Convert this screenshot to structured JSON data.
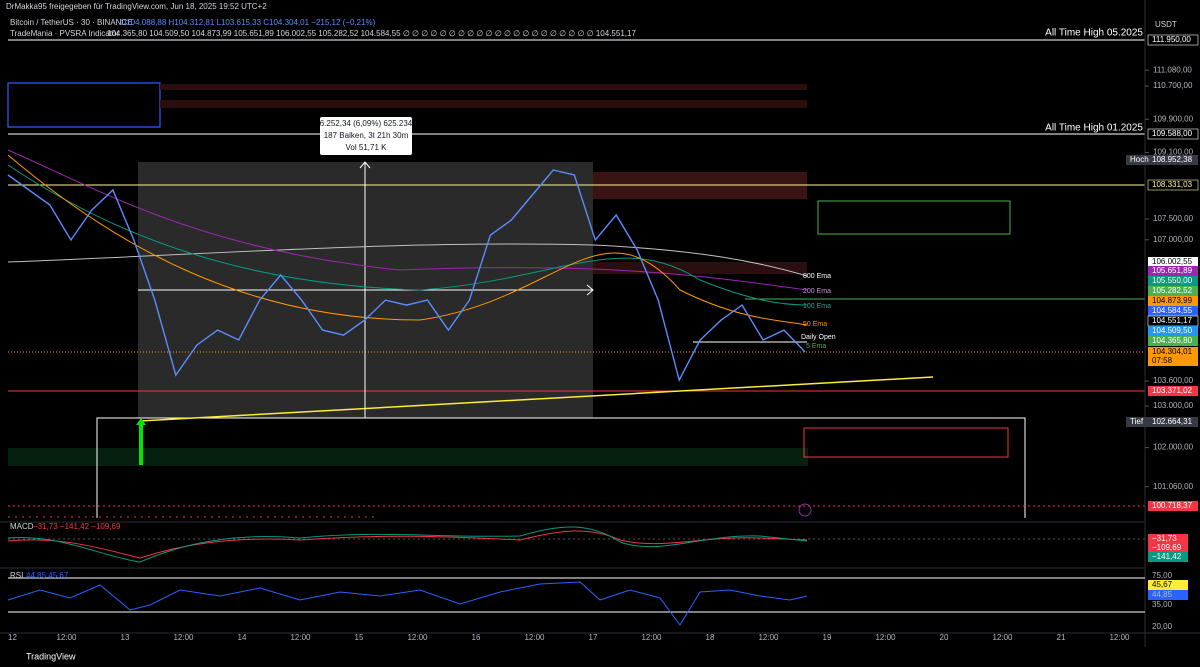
{
  "header": {
    "title_line": "DrMakka95 freigegeben für TradingView.com, Jun 18, 2025 19:52 UTC+2",
    "symbol": "Bitcoin / TetherUS · 30 · BINANCE",
    "ohlc": "O104.088,88 H104.312,81 L103.615,33 C104.304,01 −215,12 (−0,21%)",
    "indicator": "TradeMania · PVSRA Indicator",
    "indicator_values": "104.365,80 104.509,50 104.873,99 105.651,89 106.002,55 105.282,52 104.584,55 ∅ ∅ ∅ ∅ ∅ ∅ ∅ ∅ ∅ ∅ ∅ ∅ ∅ ∅ ∅ ∅ ∅ ∅ ∅ ∅ ∅ 104.551,17"
  },
  "currency": "USDT",
  "annotations": [
    "All Time High 05.2025",
    "All Time High 01.2025"
  ],
  "measure": [
    "6.252,34 (6,09%) 625.234",
    "187 Balken, 3t 21h 30m",
    "Vol 51,71 K"
  ],
  "ema_labels": [
    "800 Ema",
    "200 Ema",
    "100 Ema",
    "50 Ema",
    "Daily Open",
    "5 Ema"
  ],
  "price_tags": [
    "111.950,00",
    "109.588,00",
    "108.952,38",
    "108.331,03",
    "106.002,55",
    "105.651,89",
    "105.550,00",
    "105.282,52",
    "104.873,99",
    "104.584,55",
    "104.551,17",
    "104.509,50",
    "104.365,80",
    "104.304,01",
    "07:58",
    "103.371,02",
    "102.664,31",
    "100.718,37"
  ],
  "tag_notes": [
    "Hoch",
    "Tief"
  ],
  "macd": {
    "label": "MACD",
    "values": "−31,73 −141,42 −109,69",
    "tags": [
      "−31,73",
      "−109,69",
      "−141,42"
    ]
  },
  "rsi": {
    "label": "RSI",
    "values": "44,85 45,67",
    "tags": [
      "75,00",
      "45,67",
      "44,85",
      "35,00",
      "20,00"
    ]
  },
  "time_labels": [
    "12",
    "12:00",
    "13",
    "12:00",
    "14",
    "12:00",
    "15",
    "12:00",
    "16",
    "12:00",
    "17",
    "12:00",
    "18",
    "12:00",
    "19",
    "12:00",
    "20",
    "12:00",
    "21",
    "12:00"
  ],
  "footer": "TradingView",
  "chart_data": {
    "type": "line",
    "color": "#5b8cff",
    "values": [
      108559,
      108198,
      107837,
      106995,
      107717,
      108198,
      106995,
      105550,
      103745,
      104467,
      104828,
      104588,
      105550,
      106152,
      105550,
      104828,
      104708,
      105069,
      105550,
      105430,
      105550,
      104828,
      105550,
      107115,
      107476,
      108078,
      108679,
      108559,
      106995,
      107596,
      106754,
      105550,
      103625,
      104588,
      105069,
      105430,
      104588,
      104828,
      104304
    ],
    "ylim": [
      100210,
      112770
    ],
    "yticks": [
      {
        "value": 111080,
        "label": "111.080,00"
      },
      {
        "value": 110700,
        "label": "110.700,00"
      },
      {
        "value": 109900,
        "label": "109.900,00"
      },
      {
        "value": 109100,
        "label": "109.100,00"
      },
      {
        "value": 107500,
        "label": "107.500,00"
      },
      {
        "value": 107000,
        "label": "107.000,00"
      },
      {
        "value": 103600,
        "label": "103.600,00"
      },
      {
        "value": 103000,
        "label": "103.000,00"
      },
      {
        "value": 102000,
        "label": "102.000,00"
      },
      {
        "value": 101060,
        "label": "101.060,00"
      }
    ]
  }
}
